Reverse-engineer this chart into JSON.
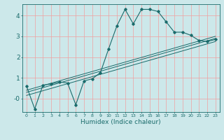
{
  "title": "",
  "xlabel": "Humidex (Indice chaleur)",
  "ylabel": "",
  "bg_color": "#cce8ea",
  "grid_color": "#f0a0a0",
  "line_color": "#1a6b6b",
  "xlim": [
    -0.5,
    23.5
  ],
  "ylim": [
    -0.65,
    4.55
  ],
  "xticks": [
    0,
    1,
    2,
    3,
    4,
    5,
    6,
    7,
    8,
    9,
    10,
    11,
    12,
    13,
    14,
    15,
    16,
    17,
    18,
    19,
    20,
    21,
    22,
    23
  ],
  "yticks": [
    0,
    1,
    2,
    3,
    4
  ],
  "ytick_labels": [
    "-0",
    "1",
    "2",
    "3",
    "4"
  ],
  "series": [
    {
      "x": [
        0,
        1,
        2,
        3,
        4,
        5,
        6,
        7,
        8,
        9,
        10,
        11,
        12,
        13,
        14,
        15,
        16,
        17,
        18,
        19,
        20,
        21,
        22,
        23
      ],
      "y": [
        0.6,
        -0.5,
        0.65,
        0.7,
        0.8,
        0.75,
        -0.3,
        0.85,
        0.95,
        1.25,
        2.4,
        3.5,
        4.3,
        3.6,
        4.3,
        4.3,
        4.2,
        3.7,
        3.2,
        3.2,
        3.05,
        2.8,
        2.75,
        2.85
      ],
      "marker": "D",
      "markersize": 2.0
    },
    {
      "x": [
        0,
        23
      ],
      "y": [
        0.3,
        2.9
      ]
    },
    {
      "x": [
        0,
        23
      ],
      "y": [
        0.4,
        3.0
      ]
    },
    {
      "x": [
        0,
        23
      ],
      "y": [
        0.15,
        2.75
      ]
    }
  ]
}
